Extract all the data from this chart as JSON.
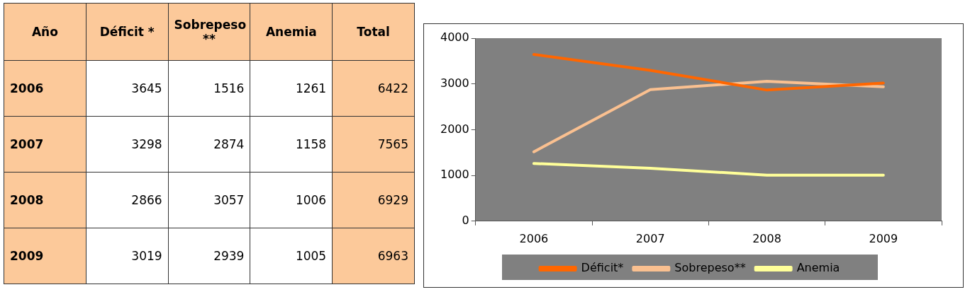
{
  "chart_data": {
    "type": "line",
    "categories": [
      "2006",
      "2007",
      "2008",
      "2009"
    ],
    "series": [
      {
        "name": "Déficit*",
        "color": "#ff6600",
        "values": [
          3645,
          3298,
          2866,
          3019
        ]
      },
      {
        "name": "Sobrepeso**",
        "color": "#fac090",
        "values": [
          1516,
          2874,
          3057,
          2939
        ]
      },
      {
        "name": "Anemia",
        "color": "#ffff99",
        "values": [
          1261,
          1158,
          1006,
          1005
        ]
      }
    ],
    "ylim": [
      0,
      4000
    ],
    "yticks": [
      0,
      1000,
      2000,
      3000,
      4000
    ],
    "grid": false,
    "legend": "bottom",
    "marker": "none",
    "line_style": "solid",
    "annotations": [
      "Año",
      "Déficit *",
      "Sobrepeso **",
      "Anemia",
      "Total",
      "2006",
      "3645",
      "1516",
      "1261",
      "6422",
      "2007",
      "3298",
      "2874",
      "1158",
      "7565",
      "2008",
      "2866",
      "3057",
      "1006",
      "6929",
      "2009",
      "3019",
      "2939",
      "1005",
      "6963"
    ]
  }
}
